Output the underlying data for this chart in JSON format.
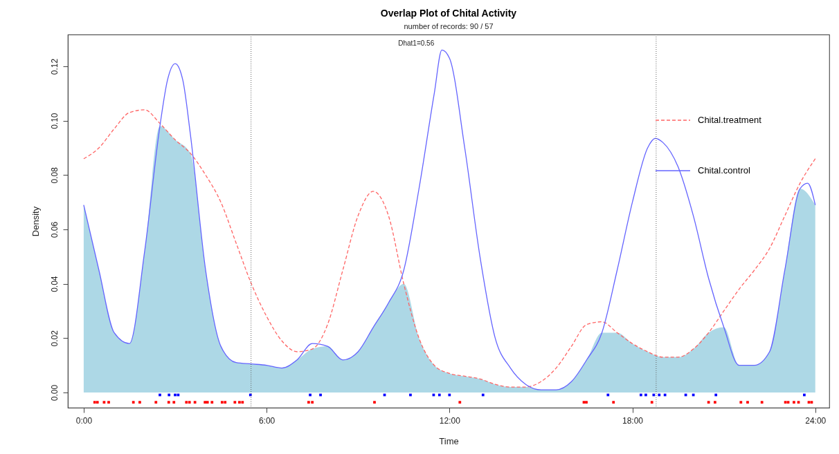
{
  "chart_data": {
    "type": "line",
    "title": "Overlap Plot of Chital Activity",
    "subtitle": "number of records: 90 / 57",
    "xlabel": "Time",
    "ylabel": "Density",
    "annotations": [
      "Dhat1=0.56"
    ],
    "xlim": [
      -0.52,
      24.46
    ],
    "ylim": [
      -0.0056,
      0.1317
    ],
    "xticks": [
      {
        "value": 0,
        "label": "0:00"
      },
      {
        "value": 6,
        "label": "6:00"
      },
      {
        "value": 12,
        "label": "12:00"
      },
      {
        "value": 18,
        "label": "18:00"
      },
      {
        "value": 24,
        "label": "24:00"
      }
    ],
    "yticks": [
      {
        "value": 0,
        "label": "0.00"
      },
      {
        "value": 0.02,
        "label": "0.02"
      },
      {
        "value": 0.04,
        "label": "0.04"
      },
      {
        "value": 0.06,
        "label": "0.06"
      },
      {
        "value": 0.08,
        "label": "0.08"
      },
      {
        "value": 0.1,
        "label": "0.10"
      },
      {
        "value": 0.12,
        "label": "0.12"
      }
    ],
    "grid": false,
    "legend": "top right",
    "x": [
      0,
      0.5,
      1,
      1.5,
      2,
      2.5,
      3,
      3.5,
      4,
      4.5,
      5,
      5.5,
      6,
      6.5,
      7,
      7.5,
      8,
      8.5,
      9,
      9.5,
      10,
      10.5,
      11,
      11.5,
      12,
      12.5,
      13,
      13.5,
      14,
      14.5,
      15,
      15.5,
      16,
      16.5,
      17,
      17.5,
      18,
      18.5,
      19,
      19.5,
      20,
      20.5,
      21,
      21.5,
      22,
      22.5,
      23,
      23.5,
      24
    ],
    "series": [
      {
        "type": "area",
        "color": "#add8e6",
        "values": [
          0.069,
          0.045,
          0.022,
          0.018,
          0.052,
          0.098,
          0.093,
          0.088,
          0.045,
          0.017,
          0.011,
          0.0105,
          0.01,
          0.009,
          0.012,
          0.016,
          0.017,
          0.012,
          0.015,
          0.024,
          0.033,
          0.04,
          0.02,
          0.01,
          0.007,
          0.006,
          0.005,
          0.003,
          0.002,
          0.002,
          0.001,
          0.001,
          0.004,
          0.012,
          0.022,
          0.022,
          0.018,
          0.015,
          0.013,
          0.013,
          0.016,
          0.022,
          0.024,
          0.01,
          0.01,
          0.015,
          0.045,
          0.075,
          0.069
        ]
      },
      {
        "name": "Chital.treatment",
        "type": "line",
        "color": "#ff6464",
        "line_style": "dashed",
        "values": [
          0.086,
          0.09,
          0.097,
          0.103,
          0.104,
          0.099,
          0.093,
          0.088,
          0.08,
          0.07,
          0.055,
          0.04,
          0.028,
          0.019,
          0.015,
          0.016,
          0.025,
          0.045,
          0.065,
          0.074,
          0.065,
          0.04,
          0.02,
          0.01,
          0.007,
          0.006,
          0.005,
          0.003,
          0.002,
          0.002,
          0.004,
          0.009,
          0.017,
          0.025,
          0.026,
          0.022,
          0.018,
          0.015,
          0.013,
          0.013,
          0.016,
          0.022,
          0.03,
          0.038,
          0.045,
          0.053,
          0.065,
          0.077,
          0.086
        ]
      },
      {
        "name": "Chital.control",
        "type": "line",
        "color": "#6464ff",
        "line_style": "solid",
        "x": [
          0,
          0.5,
          1,
          1.5,
          2,
          2.5,
          2.75,
          3,
          3.25,
          3.5,
          4,
          4.5,
          5,
          5.5,
          6,
          6.5,
          7,
          7.5,
          8,
          8.5,
          9,
          9.5,
          10,
          10.5,
          11,
          11.5,
          11.75,
          12,
          12.5,
          13,
          13.5,
          14,
          14.5,
          15,
          15.5,
          16,
          16.5,
          17,
          17.5,
          18,
          18.5,
          18.75,
          19,
          19.5,
          20,
          20.5,
          21,
          21.5,
          22,
          22.5,
          23,
          23.5,
          23.75,
          24
        ],
        "values": [
          0.069,
          0.045,
          0.022,
          0.018,
          0.052,
          0.098,
          0.115,
          0.121,
          0.115,
          0.095,
          0.045,
          0.017,
          0.011,
          0.0105,
          0.01,
          0.009,
          0.012,
          0.018,
          0.017,
          0.012,
          0.015,
          0.024,
          0.033,
          0.045,
          0.075,
          0.11,
          0.126,
          0.123,
          0.09,
          0.05,
          0.02,
          0.009,
          0.003,
          0.001,
          0.001,
          0.004,
          0.012,
          0.022,
          0.045,
          0.07,
          0.09,
          0.0935,
          0.092,
          0.083,
          0.065,
          0.042,
          0.024,
          0.01,
          0.01,
          0.015,
          0.045,
          0.075,
          0.077,
          0.069
        ]
      },
      {
        "type": "scatter",
        "color": "#0000ff",
        "marker": "square",
        "x": [
          2.5,
          2.8,
          3.0,
          3.1,
          5.47,
          7.43,
          7.77,
          9.87,
          10.72,
          11.48,
          11.67,
          12.0,
          13.1,
          17.2,
          18.28,
          18.44,
          18.7,
          18.88,
          19.07,
          19.75,
          20.0,
          20.74,
          23.64
        ],
        "values": [
          -0.0009,
          -0.0009,
          -0.0009,
          -0.0009,
          -0.0009,
          -0.0009,
          -0.0009,
          -0.0009,
          -0.0009,
          -0.0009,
          -0.0009,
          -0.0009,
          -0.0009,
          -0.0009,
          -0.0009,
          -0.0009,
          -0.0009,
          -0.0009,
          -0.0009,
          -0.0009,
          -0.0009,
          -0.0009,
          -0.0009
        ]
      },
      {
        "type": "scatter",
        "color": "#ff0000",
        "marker": "square",
        "x": [
          0.36,
          0.45,
          0.67,
          0.82,
          1.63,
          1.84,
          2.37,
          2.79,
          2.96,
          3.37,
          3.47,
          3.65,
          3.98,
          4.06,
          4.21,
          4.54,
          4.64,
          4.96,
          5.11,
          5.21,
          7.38,
          7.5,
          9.54,
          12.34,
          16.41,
          16.49,
          17.38,
          18.64,
          20.5,
          20.71,
          21.56,
          21.78,
          22.25,
          23.02,
          23.11,
          23.3,
          23.45,
          23.79,
          23.88
        ],
        "values": [
          -0.0036,
          -0.0036,
          -0.0036,
          -0.0036,
          -0.0036,
          -0.0036,
          -0.0036,
          -0.0036,
          -0.0036,
          -0.0036,
          -0.0036,
          -0.0036,
          -0.0036,
          -0.0036,
          -0.0036,
          -0.0036,
          -0.0036,
          -0.0036,
          -0.0036,
          -0.0036,
          -0.0036,
          -0.0036,
          -0.0036,
          -0.0036,
          -0.0036,
          -0.0036,
          -0.0036,
          -0.0036,
          -0.0036,
          -0.0036,
          -0.0036,
          -0.0036,
          -0.0036,
          -0.0036,
          -0.0036,
          -0.0036,
          -0.0036,
          -0.0036,
          -0.0036
        ]
      }
    ],
    "ref_lines": [
      {
        "axis": "x",
        "value": 5.49,
        "color": "#606060",
        "line_style": "dotted"
      },
      {
        "axis": "x",
        "value": 18.78,
        "color": "#606060",
        "line_style": "dotted"
      }
    ]
  }
}
